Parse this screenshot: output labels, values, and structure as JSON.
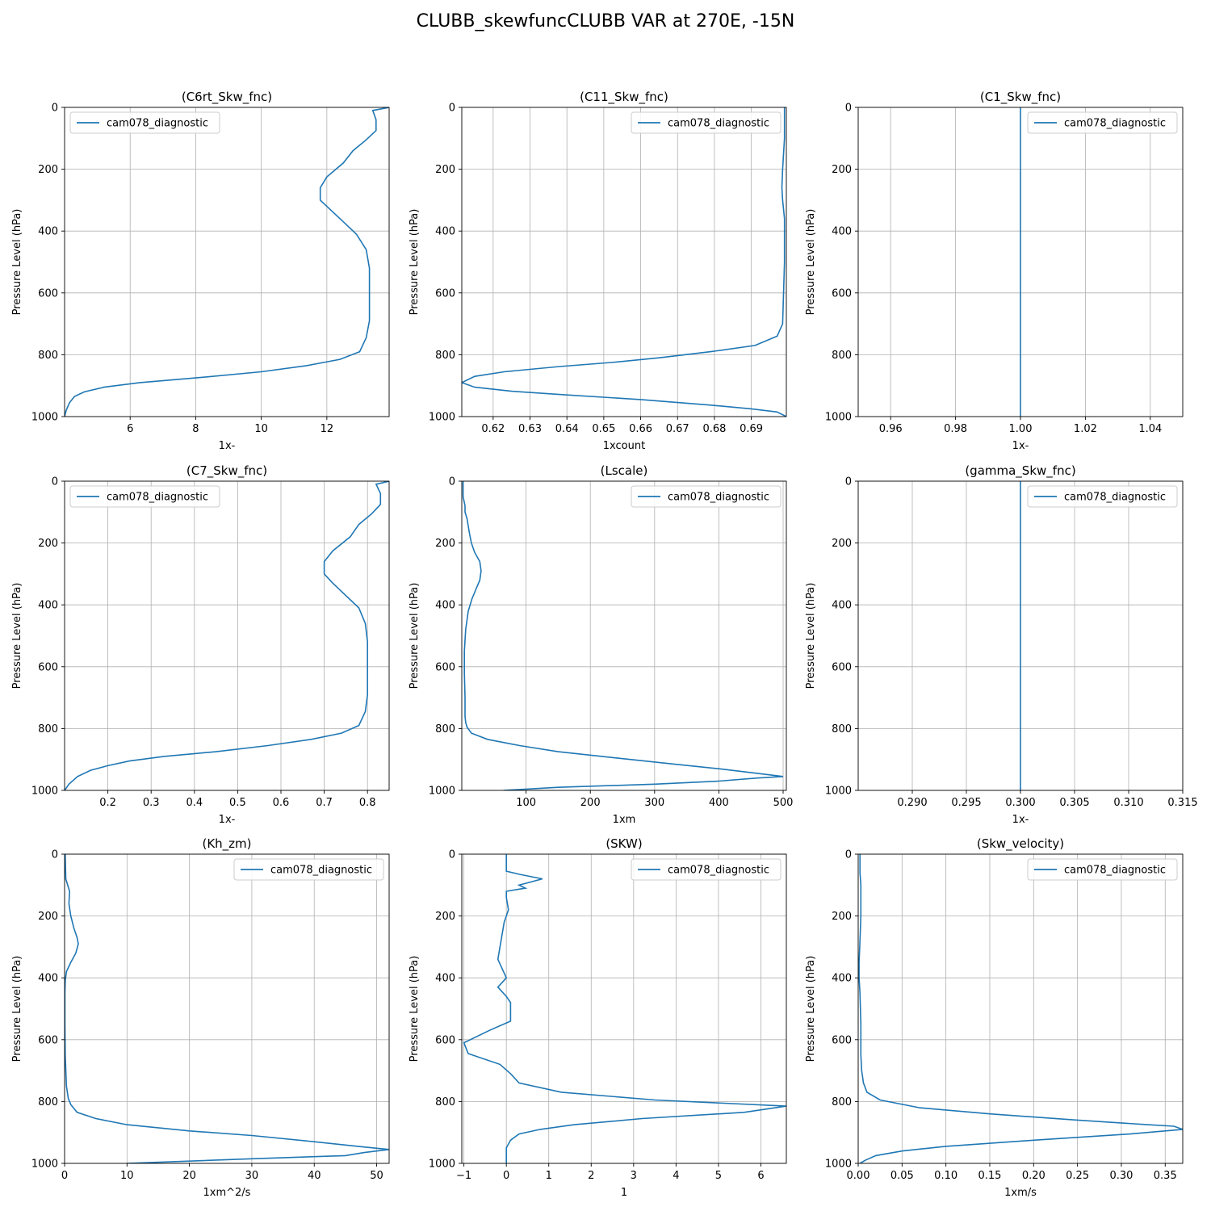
{
  "figure_title": "CLUBB_skewfuncCLUBB VAR at 270E, -15N",
  "colors": {
    "series": "#1f77b4",
    "grid": "#b0b0b0"
  },
  "chart_data": [
    {
      "type": "line",
      "title": "(C6rt_Skw_fnc)",
      "xlabel": "1x-",
      "ylabel": "Pressure Level (hPa)",
      "xlim": [
        4.0,
        13.9
      ],
      "ylim": [
        1000,
        0
      ],
      "y_inverted": true,
      "grid": true,
      "xticks": [
        6,
        8,
        10,
        12
      ],
      "xtick_labels": [
        "6",
        "8",
        "10",
        "12"
      ],
      "yticks": [
        0,
        200,
        400,
        600,
        800,
        1000
      ],
      "ytick_labels": [
        "0",
        "200",
        "400",
        "600",
        "800",
        "1000"
      ],
      "legend_loc": "upper left",
      "series": [
        {
          "name": "cam078_diagnostic",
          "x": [
            13.9,
            13.4,
            13.5,
            13.5,
            13.2,
            12.8,
            12.5,
            12.0,
            11.8,
            11.8,
            12.1,
            12.5,
            12.9,
            13.2,
            13.3,
            13.3,
            13.3,
            13.2,
            13.0,
            12.4,
            11.4,
            10.0,
            8.0,
            6.3,
            5.2,
            4.6,
            4.3,
            4.15,
            4.05,
            4.0
          ],
          "y": [
            0,
            10,
            40,
            75,
            105,
            140,
            180,
            225,
            260,
            300,
            330,
            370,
            410,
            460,
            520,
            600,
            690,
            745,
            790,
            815,
            835,
            855,
            875,
            890,
            905,
            920,
            935,
            955,
            980,
            1000
          ]
        }
      ]
    },
    {
      "type": "line",
      "title": "(C11_Skw_fnc)",
      "xlabel": "1xcount",
      "ylabel": "Pressure Level (hPa)",
      "xlim": [
        0.6115,
        0.6995
      ],
      "ylim": [
        1000,
        0
      ],
      "y_inverted": true,
      "grid": true,
      "xticks": [
        0.62,
        0.63,
        0.64,
        0.65,
        0.66,
        0.67,
        0.68,
        0.69
      ],
      "xtick_labels": [
        "0.62",
        "0.63",
        "0.64",
        "0.65",
        "0.66",
        "0.67",
        "0.68",
        "0.69"
      ],
      "yticks": [
        0,
        200,
        400,
        600,
        800,
        1000
      ],
      "ytick_labels": [
        "0",
        "200",
        "400",
        "600",
        "800",
        "1000"
      ],
      "legend_loc": "upper right",
      "series": [
        {
          "name": "cam078_diagnostic",
          "x": [
            0.699,
            0.699,
            0.6985,
            0.6983,
            0.6985,
            0.699,
            0.699,
            0.6985,
            0.697,
            0.691,
            0.679,
            0.665,
            0.652,
            0.638,
            0.623,
            0.615,
            0.6115,
            0.615,
            0.625,
            0.64,
            0.66,
            0.678,
            0.69,
            0.697,
            0.6995
          ],
          "y": [
            0,
            100,
            200,
            260,
            300,
            360,
            500,
            700,
            740,
            770,
            790,
            810,
            825,
            838,
            855,
            870,
            890,
            905,
            918,
            930,
            945,
            962,
            975,
            985,
            1000
          ]
        }
      ]
    },
    {
      "type": "line",
      "title": "(C1_Skw_fnc)",
      "xlabel": "1x-",
      "ylabel": "Pressure Level (hPa)",
      "xlim": [
        0.95,
        1.05
      ],
      "ylim": [
        1000,
        0
      ],
      "y_inverted": true,
      "grid": true,
      "xticks": [
        0.96,
        0.98,
        1.0,
        1.02,
        1.04
      ],
      "xtick_labels": [
        "0.96",
        "0.98",
        "1.00",
        "1.02",
        "1.04"
      ],
      "yticks": [
        0,
        200,
        400,
        600,
        800,
        1000
      ],
      "ytick_labels": [
        "0",
        "200",
        "400",
        "600",
        "800",
        "1000"
      ],
      "legend_loc": "upper right",
      "series": [
        {
          "name": "cam078_diagnostic",
          "x": [
            1.0,
            1.0
          ],
          "y": [
            0,
            1000
          ]
        }
      ]
    },
    {
      "type": "line",
      "title": "(C7_Skw_fnc)",
      "xlabel": "1x-",
      "ylabel": "Pressure Level (hPa)",
      "xlim": [
        0.1,
        0.85
      ],
      "ylim": [
        1000,
        0
      ],
      "y_inverted": true,
      "grid": true,
      "xticks": [
        0.2,
        0.3,
        0.4,
        0.5,
        0.6,
        0.7,
        0.8
      ],
      "xtick_labels": [
        "0.2",
        "0.3",
        "0.4",
        "0.5",
        "0.6",
        "0.7",
        "0.8"
      ],
      "yticks": [
        0,
        200,
        400,
        600,
        800,
        1000
      ],
      "ytick_labels": [
        "0",
        "200",
        "400",
        "600",
        "800",
        "1000"
      ],
      "legend_loc": "upper left",
      "series": [
        {
          "name": "cam078_diagnostic",
          "x": [
            0.85,
            0.82,
            0.83,
            0.83,
            0.81,
            0.78,
            0.76,
            0.72,
            0.7,
            0.7,
            0.72,
            0.75,
            0.78,
            0.795,
            0.8,
            0.8,
            0.8,
            0.795,
            0.78,
            0.74,
            0.67,
            0.57,
            0.45,
            0.33,
            0.25,
            0.2,
            0.16,
            0.13,
            0.11,
            0.1
          ],
          "y": [
            0,
            10,
            40,
            75,
            105,
            140,
            180,
            225,
            260,
            300,
            330,
            370,
            410,
            460,
            520,
            600,
            690,
            745,
            790,
            815,
            835,
            855,
            875,
            890,
            905,
            920,
            935,
            955,
            980,
            1000
          ]
        }
      ]
    },
    {
      "type": "line",
      "title": "(Lscale)",
      "xlabel": "1xm",
      "ylabel": "Pressure Level (hPa)",
      "xlim": [
        0,
        505
      ],
      "ylim": [
        1000,
        0
      ],
      "y_inverted": true,
      "grid": true,
      "xticks": [
        100,
        200,
        300,
        400,
        500
      ],
      "xtick_labels": [
        "100",
        "200",
        "300",
        "400",
        "500"
      ],
      "yticks": [
        0,
        200,
        400,
        600,
        800,
        1000
      ],
      "ytick_labels": [
        "0",
        "200",
        "400",
        "600",
        "800",
        "1000"
      ],
      "legend_loc": "upper right",
      "series": [
        {
          "name": "cam078_diagnostic",
          "x": [
            2,
            2,
            5,
            5,
            8,
            12,
            15,
            20,
            28,
            30,
            28,
            22,
            16,
            10,
            6,
            4,
            4,
            5,
            5,
            6,
            8,
            15,
            40,
            90,
            150,
            240,
            330,
            400,
            460,
            500,
            460,
            400,
            300,
            150,
            65
          ],
          "y": [
            0,
            50,
            80,
            100,
            120,
            170,
            200,
            230,
            260,
            290,
            320,
            350,
            380,
            420,
            480,
            550,
            620,
            700,
            760,
            780,
            795,
            815,
            835,
            855,
            875,
            895,
            915,
            930,
            945,
            955,
            960,
            970,
            980,
            990,
            1000
          ]
        }
      ]
    },
    {
      "type": "line",
      "title": "(gamma_Skw_fnc)",
      "xlabel": "1x-",
      "ylabel": "Pressure Level (hPa)",
      "xlim": [
        0.285,
        0.315
      ],
      "ylim": [
        1000,
        0
      ],
      "y_inverted": true,
      "grid": true,
      "xticks": [
        0.29,
        0.295,
        0.3,
        0.305,
        0.31,
        0.315
      ],
      "xtick_labels": [
        "0.290",
        "0.295",
        "0.300",
        "0.305",
        "0.310",
        "0.315"
      ],
      "yticks": [
        0,
        200,
        400,
        600,
        800,
        1000
      ],
      "ytick_labels": [
        "0",
        "200",
        "400",
        "600",
        "800",
        "1000"
      ],
      "legend_loc": "upper right",
      "series": [
        {
          "name": "cam078_diagnostic",
          "x": [
            0.3,
            0.3
          ],
          "y": [
            0,
            1000
          ]
        }
      ]
    },
    {
      "type": "line",
      "title": "(Kh_zm)",
      "xlabel": "1xm^2/s",
      "ylabel": "Pressure Level (hPa)",
      "xlim": [
        0,
        52
      ],
      "ylim": [
        1000,
        0
      ],
      "y_inverted": true,
      "grid": true,
      "xticks": [
        0,
        10,
        20,
        30,
        40,
        50
      ],
      "xtick_labels": [
        "0",
        "10",
        "20",
        "30",
        "40",
        "50"
      ],
      "yticks": [
        0,
        200,
        400,
        600,
        800,
        1000
      ],
      "ytick_labels": [
        "0",
        "200",
        "400",
        "600",
        "800",
        "1000"
      ],
      "legend_loc": "upper right",
      "series": [
        {
          "name": "cam078_diagnostic",
          "x": [
            0.1,
            0.2,
            0.8,
            0.7,
            1.0,
            1.5,
            2.0,
            2.2,
            1.8,
            1.0,
            0.3,
            0.1,
            0.05,
            0.05,
            0.1,
            0.3,
            0.6,
            1.0,
            2.0,
            5.0,
            10.0,
            20.0,
            30.0,
            40.0,
            47.0,
            52.0,
            48.0,
            45.0,
            30.0,
            10.0
          ],
          "y": [
            0,
            80,
            120,
            160,
            200,
            240,
            270,
            290,
            320,
            350,
            380,
            410,
            450,
            550,
            650,
            750,
            790,
            810,
            835,
            855,
            875,
            895,
            910,
            930,
            945,
            955,
            965,
            975,
            985,
            1000
          ]
        }
      ]
    },
    {
      "type": "line",
      "title": "(SKW)",
      "xlabel": "1",
      "ylabel": "Pressure Level (hPa)",
      "xlim": [
        -1.05,
        6.6
      ],
      "ylim": [
        1000,
        0
      ],
      "y_inverted": true,
      "grid": true,
      "xticks": [
        -1,
        0,
        1,
        2,
        3,
        4,
        5,
        6
      ],
      "xtick_labels": [
        "−1",
        "0",
        "1",
        "2",
        "3",
        "4",
        "5",
        "6"
      ],
      "yticks": [
        0,
        200,
        400,
        600,
        800,
        1000
      ],
      "ytick_labels": [
        "0",
        "200",
        "400",
        "600",
        "800",
        "1000"
      ],
      "legend_loc": "upper right",
      "series": [
        {
          "name": "cam078_diagnostic",
          "x": [
            0.0,
            0.0,
            0.3,
            0.85,
            0.3,
            0.45,
            0.0,
            0.0,
            0.05,
            -0.05,
            -0.1,
            -0.15,
            -0.2,
            -0.1,
            0.0,
            -0.2,
            0.0,
            0.1,
            0.1,
            0.1,
            -0.4,
            -1.0,
            -0.9,
            -0.15,
            0.1,
            0.3,
            1.3,
            3.5,
            6.6,
            5.6,
            3.2,
            1.6,
            0.8,
            0.3,
            0.1,
            0.0,
            0.0
          ],
          "y": [
            0,
            55,
            65,
            80,
            100,
            110,
            120,
            140,
            180,
            220,
            260,
            300,
            340,
            370,
            400,
            430,
            460,
            480,
            500,
            540,
            570,
            610,
            645,
            680,
            710,
            740,
            770,
            795,
            815,
            835,
            855,
            875,
            890,
            905,
            925,
            950,
            1000
          ]
        }
      ]
    },
    {
      "type": "line",
      "title": "(Skw_velocity)",
      "xlabel": "1xm/s",
      "ylabel": "Pressure Level (hPa)",
      "xlim": [
        0.0,
        0.37
      ],
      "ylim": [
        1000,
        0
      ],
      "y_inverted": true,
      "grid": true,
      "xticks": [
        0.0,
        0.05,
        0.1,
        0.15,
        0.2,
        0.25,
        0.3,
        0.35
      ],
      "xtick_labels": [
        "0.00",
        "0.05",
        "0.10",
        "0.15",
        "0.20",
        "0.25",
        "0.30",
        "0.35"
      ],
      "yticks": [
        0,
        200,
        400,
        600,
        800,
        1000
      ],
      "ytick_labels": [
        "0",
        "200",
        "400",
        "600",
        "800",
        "1000"
      ],
      "legend_loc": "upper right",
      "series": [
        {
          "name": "cam078_diagnostic",
          "x": [
            0.002,
            0.002,
            0.003,
            0.003,
            0.002,
            0.001,
            0.001,
            0.002,
            0.003,
            0.003,
            0.004,
            0.006,
            0.01,
            0.025,
            0.07,
            0.15,
            0.25,
            0.33,
            0.36,
            0.37,
            0.31,
            0.2,
            0.1,
            0.05,
            0.02,
            0.008,
            0.002
          ],
          "y": [
            0,
            60,
            100,
            200,
            280,
            350,
            400,
            450,
            550,
            650,
            700,
            740,
            770,
            795,
            820,
            840,
            860,
            875,
            880,
            890,
            905,
            925,
            945,
            960,
            975,
            990,
            1000
          ]
        }
      ]
    }
  ]
}
